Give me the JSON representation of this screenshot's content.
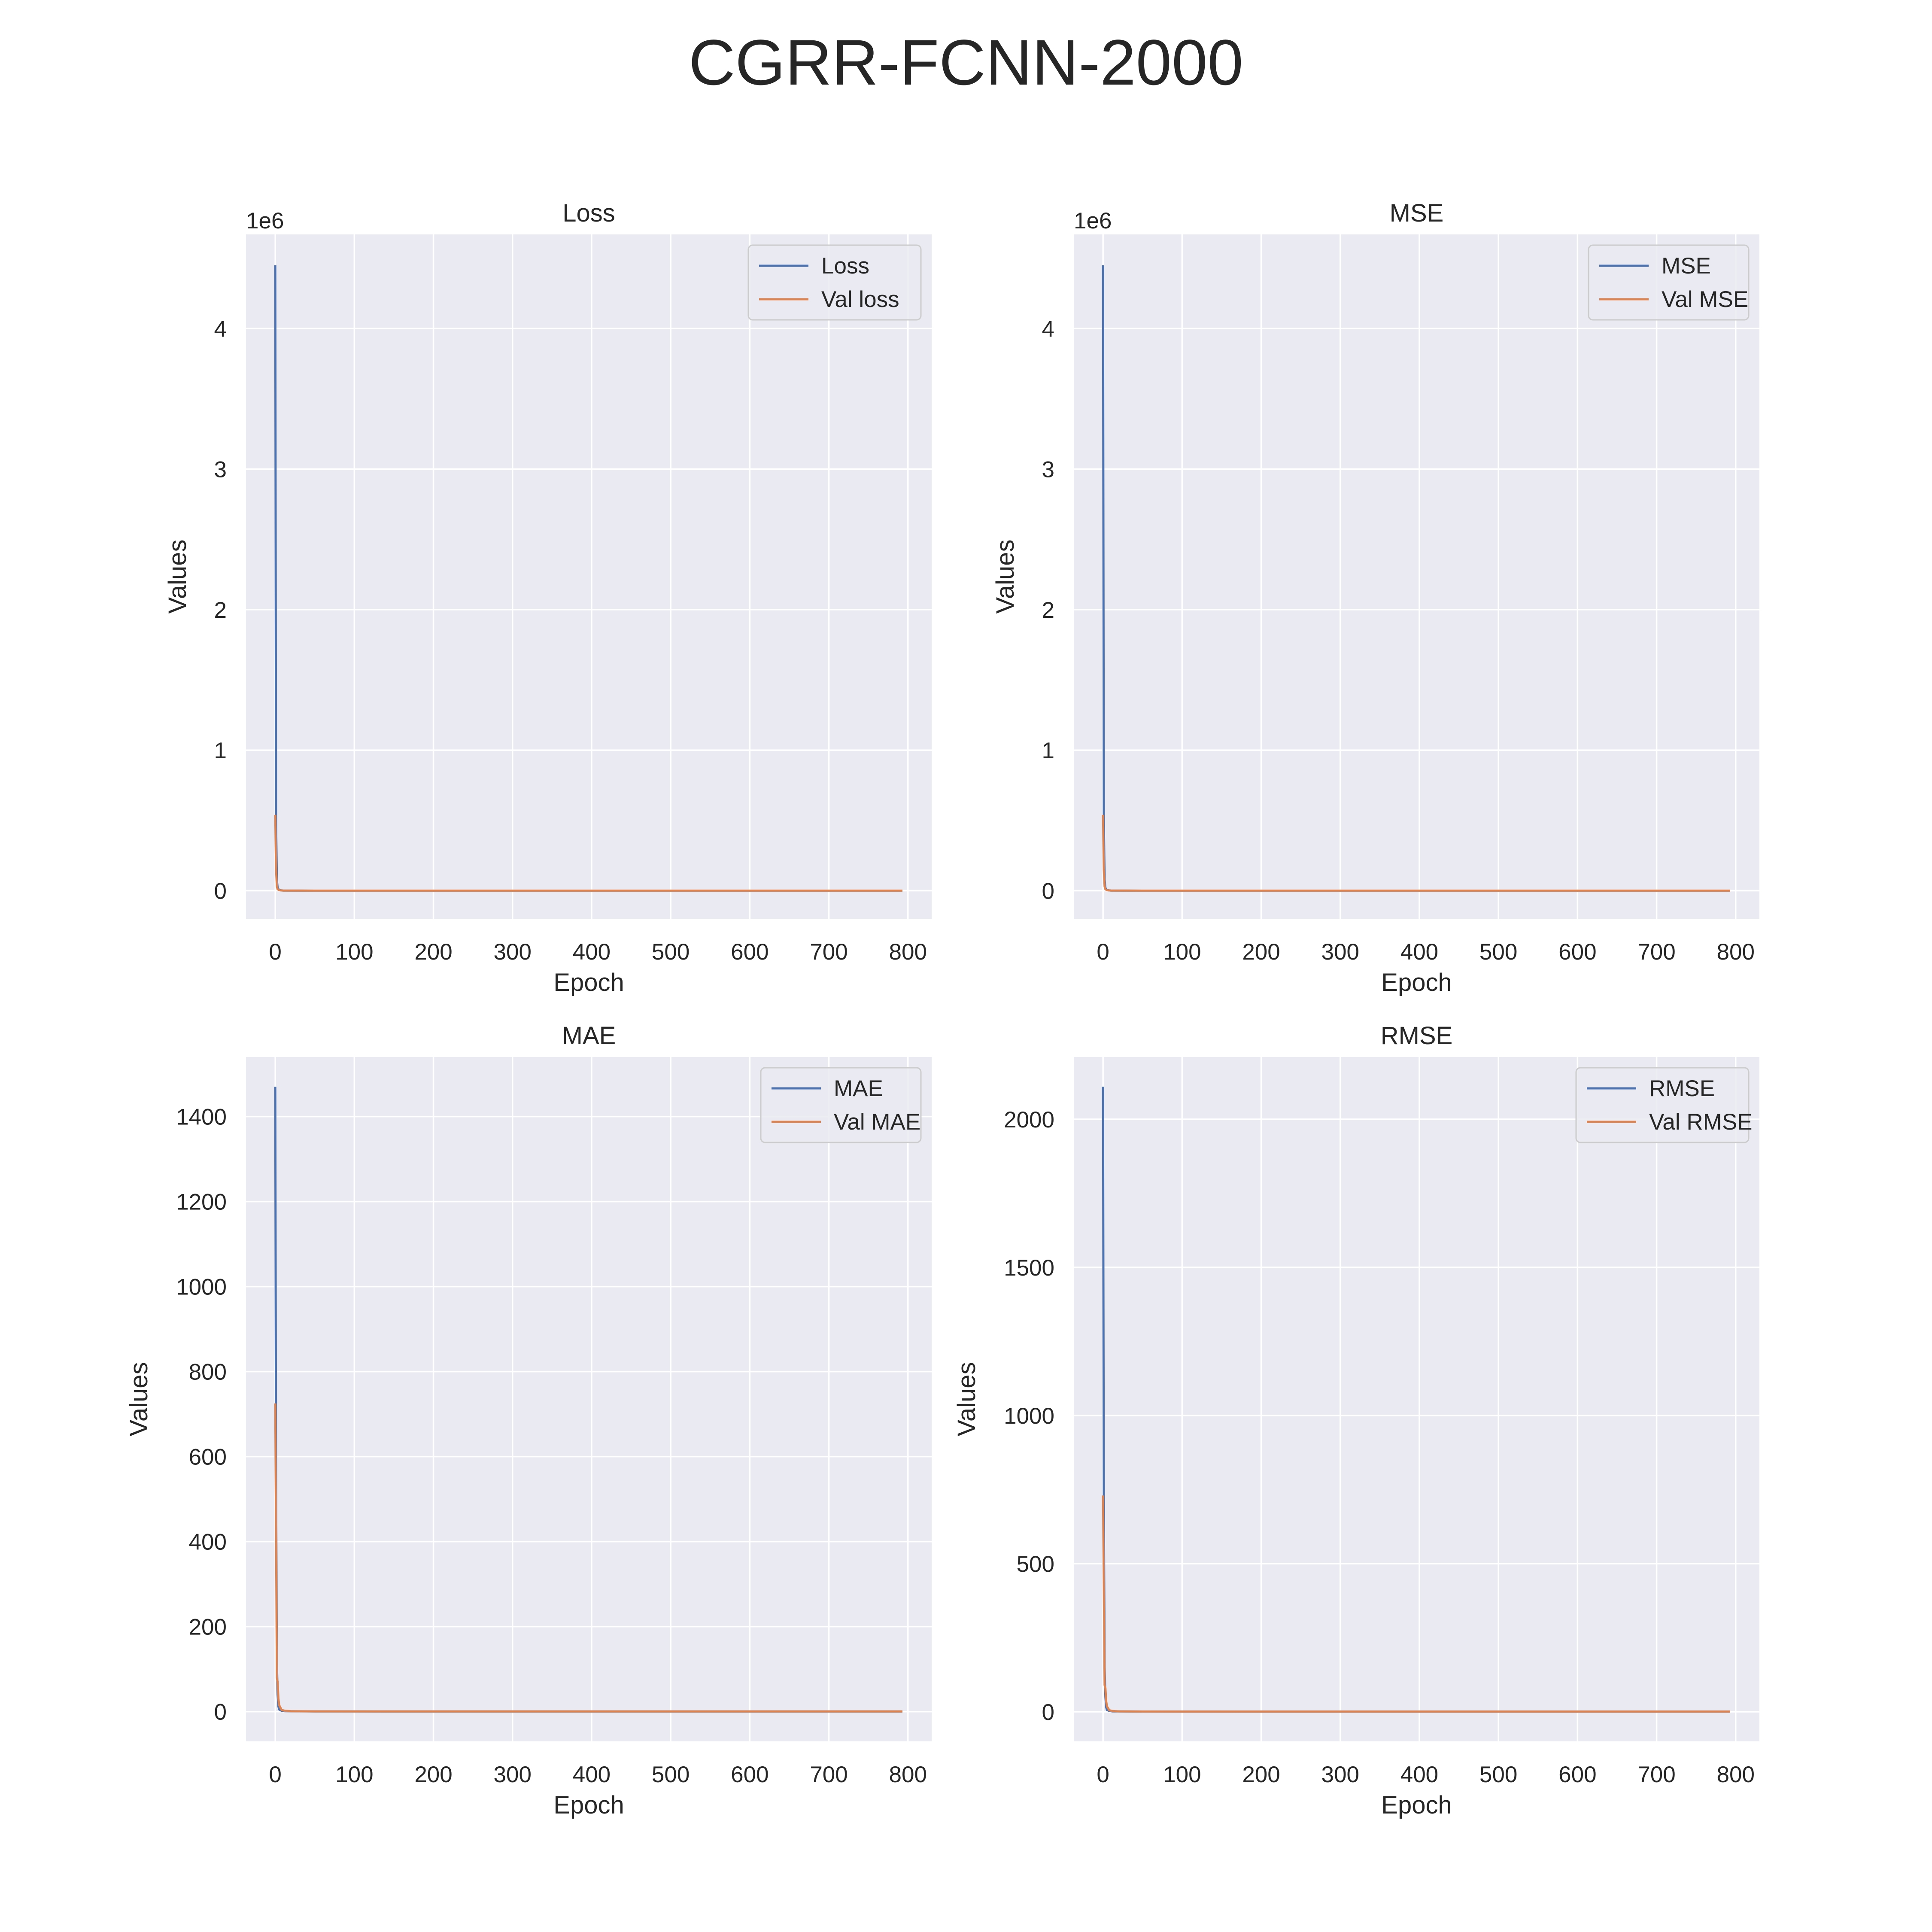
{
  "figure": {
    "title": "CGRR-FCNN-2000"
  },
  "chart_data": [
    {
      "type": "line",
      "title": "Loss",
      "xlabel": "Epoch",
      "ylabel": "Values",
      "y_offset_text": "1e6",
      "xlim": [
        -37,
        830
      ],
      "ylim": [
        -0.2,
        4.67
      ],
      "x_ticks": [
        0,
        100,
        200,
        300,
        400,
        500,
        600,
        700,
        800
      ],
      "y_ticks": [
        0,
        1,
        2,
        3,
        4
      ],
      "y_tick_labels": [
        "0",
        "1",
        "2",
        "3",
        "4"
      ],
      "grid": true,
      "legend": "top-right",
      "series": [
        {
          "name": "Loss",
          "color": "#4c72b0",
          "x": [
            0,
            1,
            2,
            3,
            5,
            10,
            50,
            100,
            200,
            300,
            400,
            500,
            600,
            700,
            793
          ],
          "y": [
            4.45,
            0.5,
            0.08,
            0.02,
            0.004,
            0.001,
            0.0003,
            0.0002,
            0.0001,
            0.0001,
            0.0001,
            0.0001,
            0.0001,
            0.0001,
            0.0001
          ]
        },
        {
          "name": "Val loss",
          "color": "#dd8452",
          "x": [
            0,
            1,
            2,
            3,
            5,
            10,
            50,
            100,
            200,
            300,
            400,
            500,
            600,
            700,
            793
          ],
          "y": [
            0.54,
            0.15,
            0.03,
            0.01,
            0.003,
            0.001,
            0.0003,
            0.0002,
            0.0001,
            0.0001,
            0.0001,
            0.0001,
            0.0001,
            0.0001,
            0.0001
          ]
        }
      ]
    },
    {
      "type": "line",
      "title": "MSE",
      "xlabel": "Epoch",
      "ylabel": "Values",
      "y_offset_text": "1e6",
      "xlim": [
        -37,
        830
      ],
      "ylim": [
        -0.2,
        4.67
      ],
      "x_ticks": [
        0,
        100,
        200,
        300,
        400,
        500,
        600,
        700,
        800
      ],
      "y_ticks": [
        0,
        1,
        2,
        3,
        4
      ],
      "y_tick_labels": [
        "0",
        "1",
        "2",
        "3",
        "4"
      ],
      "grid": true,
      "legend": "top-right",
      "series": [
        {
          "name": "MSE",
          "color": "#4c72b0",
          "x": [
            0,
            1,
            2,
            3,
            5,
            10,
            50,
            100,
            200,
            300,
            400,
            500,
            600,
            700,
            793
          ],
          "y": [
            4.45,
            0.5,
            0.08,
            0.02,
            0.004,
            0.001,
            0.0003,
            0.0002,
            0.0001,
            0.0001,
            0.0001,
            0.0001,
            0.0001,
            0.0001,
            0.0001
          ]
        },
        {
          "name": "Val MSE",
          "color": "#dd8452",
          "x": [
            0,
            1,
            2,
            3,
            5,
            10,
            50,
            100,
            200,
            300,
            400,
            500,
            600,
            700,
            793
          ],
          "y": [
            0.54,
            0.15,
            0.03,
            0.01,
            0.003,
            0.001,
            0.0003,
            0.0002,
            0.0001,
            0.0001,
            0.0001,
            0.0001,
            0.0001,
            0.0001,
            0.0001
          ]
        }
      ]
    },
    {
      "type": "line",
      "title": "MAE",
      "xlabel": "Epoch",
      "ylabel": "Values",
      "y_offset_text": "",
      "xlim": [
        -37,
        830
      ],
      "ylim": [
        -70,
        1540
      ],
      "x_ticks": [
        0,
        100,
        200,
        300,
        400,
        500,
        600,
        700,
        800
      ],
      "y_ticks": [
        0,
        200,
        400,
        600,
        800,
        1000,
        1200,
        1400
      ],
      "y_tick_labels": [
        "0",
        "200",
        "400",
        "600",
        "800",
        "1000",
        "1200",
        "1400"
      ],
      "grid": true,
      "legend": "top-right",
      "series": [
        {
          "name": "MAE",
          "color": "#4c72b0",
          "x": [
            0,
            1,
            2,
            3,
            4,
            5,
            8,
            12,
            20,
            50,
            100,
            200,
            300,
            400,
            500,
            600,
            700,
            793
          ],
          "y": [
            1470,
            560,
            120,
            40,
            12,
            5,
            2,
            1,
            0.8,
            0.5,
            0.4,
            0.3,
            0.3,
            0.3,
            0.3,
            0.3,
            0.3,
            0.3
          ]
        },
        {
          "name": "Val MAE",
          "color": "#dd8452",
          "x": [
            0,
            1,
            2,
            3,
            4,
            5,
            8,
            12,
            20,
            50,
            100,
            200,
            300,
            400,
            500,
            600,
            700,
            793
          ],
          "y": [
            725,
            420,
            80,
            70,
            30,
            15,
            4,
            2,
            1,
            0.6,
            0.5,
            0.4,
            0.4,
            0.4,
            0.4,
            0.4,
            0.4,
            0.4
          ]
        }
      ]
    },
    {
      "type": "line",
      "title": "RMSE",
      "xlabel": "Epoch",
      "ylabel": "Values",
      "y_offset_text": "",
      "xlim": [
        -37,
        830
      ],
      "ylim": [
        -100,
        2210
      ],
      "x_ticks": [
        0,
        100,
        200,
        300,
        400,
        500,
        600,
        700,
        800
      ],
      "y_ticks": [
        0,
        500,
        1000,
        1500,
        2000
      ],
      "y_tick_labels": [
        "0",
        "500",
        "1000",
        "1500",
        "2000"
      ],
      "grid": true,
      "legend": "top-right",
      "series": [
        {
          "name": "RMSE",
          "color": "#4c72b0",
          "x": [
            0,
            1,
            2,
            3,
            4,
            5,
            8,
            12,
            20,
            50,
            100,
            200,
            300,
            400,
            500,
            600,
            700,
            793
          ],
          "y": [
            2110,
            720,
            150,
            50,
            15,
            6,
            2.5,
            1.3,
            1,
            0.7,
            0.5,
            0.4,
            0.4,
            0.4,
            0.4,
            0.4,
            0.4,
            0.4
          ]
        },
        {
          "name": "Val RMSE",
          "color": "#dd8452",
          "x": [
            0,
            1,
            2,
            3,
            4,
            5,
            8,
            12,
            20,
            50,
            100,
            200,
            300,
            400,
            500,
            600,
            700,
            793
          ],
          "y": [
            730,
            430,
            90,
            80,
            35,
            18,
            5,
            2.5,
            1.3,
            0.8,
            0.6,
            0.5,
            0.5,
            0.5,
            0.5,
            0.5,
            0.5,
            0.5
          ]
        }
      ]
    }
  ]
}
